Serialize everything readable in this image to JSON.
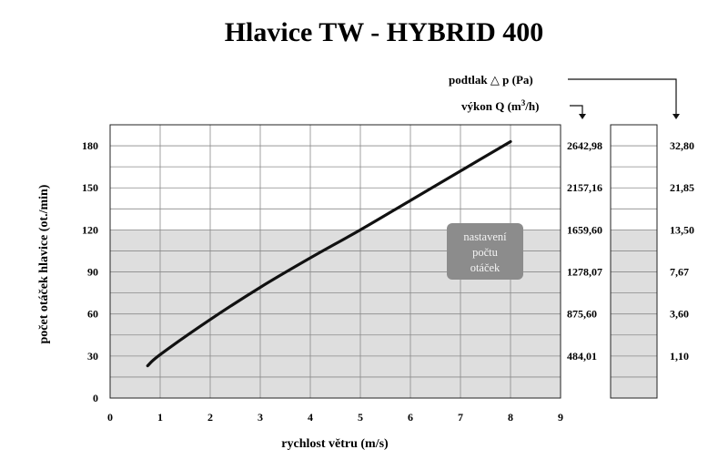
{
  "chart_data": {
    "type": "line",
    "title": "Hlavice TW - HYBRID 400",
    "xlabel": "rychlost větru (m/s)",
    "ylabel": "počet otáček hlavice (ot./min)",
    "xlim": [
      0,
      9
    ],
    "ylim": [
      0,
      195
    ],
    "xticks": [
      "0",
      "1",
      "2",
      "3",
      "4",
      "5",
      "6",
      "7",
      "8",
      "9"
    ],
    "yticks": [
      "0",
      "30",
      "60",
      "90",
      "120",
      "150",
      "180"
    ],
    "grid": true,
    "series": [
      {
        "x": [
          0.75,
          1,
          2,
          3,
          4,
          5,
          6,
          7,
          8
        ],
        "y": [
          23,
          31,
          56,
          79,
          100,
          120,
          141,
          162,
          183
        ]
      }
    ],
    "shaded_band": {
      "y_from": 0,
      "y_to": 120
    },
    "annotation": "nastavení\npočtu\notáček",
    "secondary_axes": [
      {
        "label_main": "výkon Q (m",
        "label_sup": "3",
        "label_tail": "/h)",
        "ticks": [
          {
            "at": 30,
            "label": "484,01"
          },
          {
            "at": 60,
            "label": "875,60"
          },
          {
            "at": 90,
            "label": "1278,07"
          },
          {
            "at": 120,
            "label": "1659,60"
          },
          {
            "at": 150,
            "label": "2157,16"
          },
          {
            "at": 180,
            "label": "2642,98"
          }
        ]
      },
      {
        "label": "podtlak △ p (Pa)",
        "ticks": [
          {
            "at": 30,
            "label": "1,10"
          },
          {
            "at": 60,
            "label": "3,60"
          },
          {
            "at": 90,
            "label": "7,67"
          },
          {
            "at": 120,
            "label": "13,50"
          },
          {
            "at": 150,
            "label": "21,85"
          },
          {
            "at": 180,
            "label": "32,80"
          }
        ]
      }
    ],
    "colors": {
      "band": "#dedede",
      "note_box": "#8c8c8c",
      "line": "#111111",
      "grid": "#8a8a8a"
    }
  }
}
